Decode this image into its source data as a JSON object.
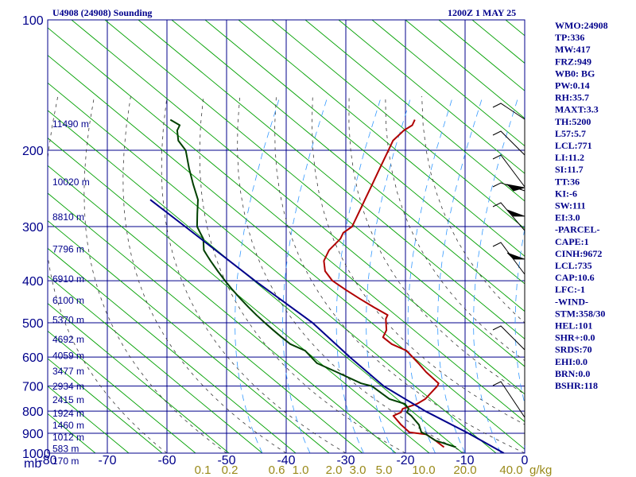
{
  "header": {
    "station": "U4908 (24908) Sounding",
    "valid_time": "1200Z  1 MAY 25"
  },
  "indices": [
    "WMO:24908",
    "TP:336",
    "MW:417",
    "FRZ:949",
    "WB0: BG",
    "PW:0.14",
    "RH:35.7",
    "MAXT:3.3",
    "TH:5200",
    "L57:5.7",
    "LCL:771",
    "LI:11.2",
    "SI:11.7",
    "TT:36",
    "KI:-6",
    "SW:111",
    "EI:3.0",
    "-PARCEL-",
    "CAPE:1",
    "CINH:9672",
    "LCL:735",
    "CAP:10.6",
    "LFC:-1",
    "-WIND-",
    "STM:358/30",
    "HEL:101",
    "SHR+:0.0",
    "SRDS:70",
    "EHI:0.0",
    "BRN:0.0",
    "BSHR:118"
  ],
  "colors": {
    "frame": "#00008b",
    "dry_adiabat": "#00a000",
    "temperature": "#b00000",
    "dewpoint": "#004000",
    "parcel": "#00008b",
    "moist_adiabat": "#3a3a3a",
    "mixing_ratio": "#3399ff",
    "mixing_label": "#9a8a1a"
  },
  "chart_data": {
    "type": "skew-t",
    "title": "U4908 (24908) Sounding",
    "xlabel": "",
    "ylabel": "mb",
    "x_unit": "°C",
    "xlim": [
      -80,
      0
    ],
    "ylim": [
      1000,
      100
    ],
    "y_scale": "log",
    "pressure_ticks": [
      100,
      200,
      300,
      400,
      500,
      600,
      700,
      800,
      900,
      1000
    ],
    "temperature_ticks": [
      -80,
      -70,
      -60,
      -50,
      -40,
      -30,
      -20,
      -10,
      0
    ],
    "temperature_tick_labels": [
      "-80",
      "-70",
      "-60",
      "-50",
      "-40",
      "-30",
      "-20",
      "-10",
      "0"
    ],
    "mixing_ratio_labels": [
      "0.1",
      "0.2",
      "0.6",
      "1.0",
      "2.0",
      "3.0",
      "5.0",
      "10.0",
      "20.0",
      "40.0"
    ],
    "mixing_ratio_unit": "g/kg",
    "height_labels": [
      {
        "p": 180,
        "text": "11490 m"
      },
      {
        "p": 245,
        "text": "10020 m"
      },
      {
        "p": 295,
        "text": "8810 m"
      },
      {
        "p": 350,
        "text": "7796 m"
      },
      {
        "p": 410,
        "text": "6910 m"
      },
      {
        "p": 460,
        "text": "6100 m"
      },
      {
        "p": 510,
        "text": "5370 m"
      },
      {
        "p": 565,
        "text": "4692 m"
      },
      {
        "p": 617,
        "text": "4059 m"
      },
      {
        "p": 670,
        "text": "3477 m"
      },
      {
        "p": 725,
        "text": "2934 m"
      },
      {
        "p": 780,
        "text": "2415 m"
      },
      {
        "p": 838,
        "text": "1924 m"
      },
      {
        "p": 893,
        "text": "1460 m"
      },
      {
        "p": 950,
        "text": "1012 m"
      },
      {
        "p": 1010,
        "text": "583 m"
      },
      {
        "p": 1080,
        "text": "170 m"
      }
    ],
    "series": [
      {
        "p": [
          969,
          935,
          905,
          895,
          860,
          820,
          805,
          790,
          770,
          750,
          700,
          690,
          650,
          620,
          580,
          560,
          540,
          520,
          490,
          480,
          460,
          440,
          420,
          400,
          380,
          360,
          350,
          340,
          320,
          310,
          300,
          280,
          260,
          240,
          220,
          200,
          190,
          180,
          175,
          170
        ],
        "t": [
          -14,
          -16,
          -18,
          -21,
          -23,
          -25,
          -24,
          -24,
          -22,
          -21,
          -20,
          -20,
          -23,
          -25,
          -28,
          -31,
          -33,
          -33,
          -34,
          -34,
          -37,
          -40,
          -43,
          -46,
          -48,
          -49,
          -49,
          -49,
          -48,
          -48,
          -47,
          -47,
          -47,
          -47,
          -47,
          -47,
          -47,
          -46,
          -45,
          -45
        ]
      },
      {
        "p": [
          969,
          935,
          905,
          895,
          860,
          820,
          805,
          790,
          770,
          750,
          700,
          690,
          650,
          620,
          580,
          560,
          540,
          520,
          500,
          480,
          460,
          440,
          420,
          400,
          380,
          360,
          350,
          340,
          320,
          310,
          300,
          280,
          260,
          240,
          220,
          200,
          190,
          180,
          175,
          170
        ],
        "t": [
          -12,
          -16,
          -18,
          -19,
          -20,
          -22,
          -23,
          -23,
          -24,
          -27,
          -31,
          -33,
          -38,
          -42,
          -45,
          -48,
          -50,
          -52,
          -54,
          -56,
          -58,
          -60,
          -62,
          -64,
          -66,
          -68,
          -69,
          -70,
          -71,
          -72,
          -73,
          -74,
          -75,
          -77,
          -79,
          -81,
          -83,
          -84,
          -84,
          -86
        ]
      },
      {
        "p": [
          1000,
          900,
          800,
          700,
          600,
          500,
          400,
          300,
          260
        ],
        "t": [
          -3.5,
          -11,
          -20,
          -29,
          -37,
          -46,
          -59,
          -75,
          -83
        ]
      }
    ]
  }
}
